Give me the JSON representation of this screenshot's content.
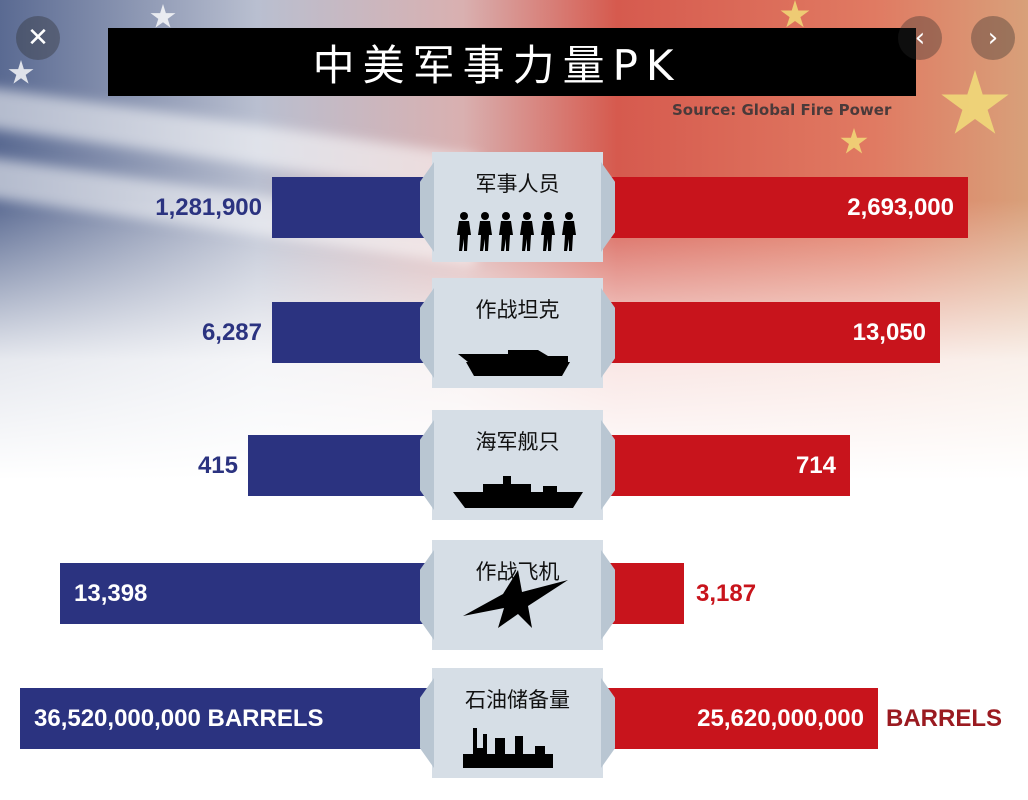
{
  "viewer": {
    "close_icon": "close-icon",
    "prev_icon": "chevron-left-icon",
    "next_icon": "chevron-right-icon",
    "close": "✕",
    "prev": "‹",
    "next": "›"
  },
  "title": "中美军事力量PK",
  "source": "Source: Global Fire Power",
  "colors": {
    "left": "#2b3380",
    "right": "#c8141c",
    "panel": "#d6dee6",
    "title_bg": "#000000"
  },
  "chart_data": {
    "type": "bar",
    "orientation": "diverging-horizontal",
    "categories": [
      "军事人员",
      "作战坦克",
      "海军舰只",
      "作战飞机",
      "石油储备量"
    ],
    "icons": [
      "soldiers-icon",
      "tank-icon",
      "warship-icon",
      "fighter-jet-icon",
      "oil-refinery-icon"
    ],
    "series": [
      {
        "values": [
          1281900,
          6287,
          415,
          13398,
          36520000000
        ],
        "labels": [
          "1,281,900",
          "6,287",
          "415",
          "13,398",
          "36,520,000,000 BARRELS"
        ]
      },
      {
        "values": [
          2693000,
          13050,
          714,
          3187,
          25620000000
        ],
        "labels": [
          "2,693,000",
          "13,050",
          "714",
          "3,187",
          "25,620,000,000"
        ],
        "unit_suffix": [
          "",
          "",
          "",
          "",
          "BARRELS"
        ]
      }
    ],
    "title": "中美军事力量PK"
  }
}
